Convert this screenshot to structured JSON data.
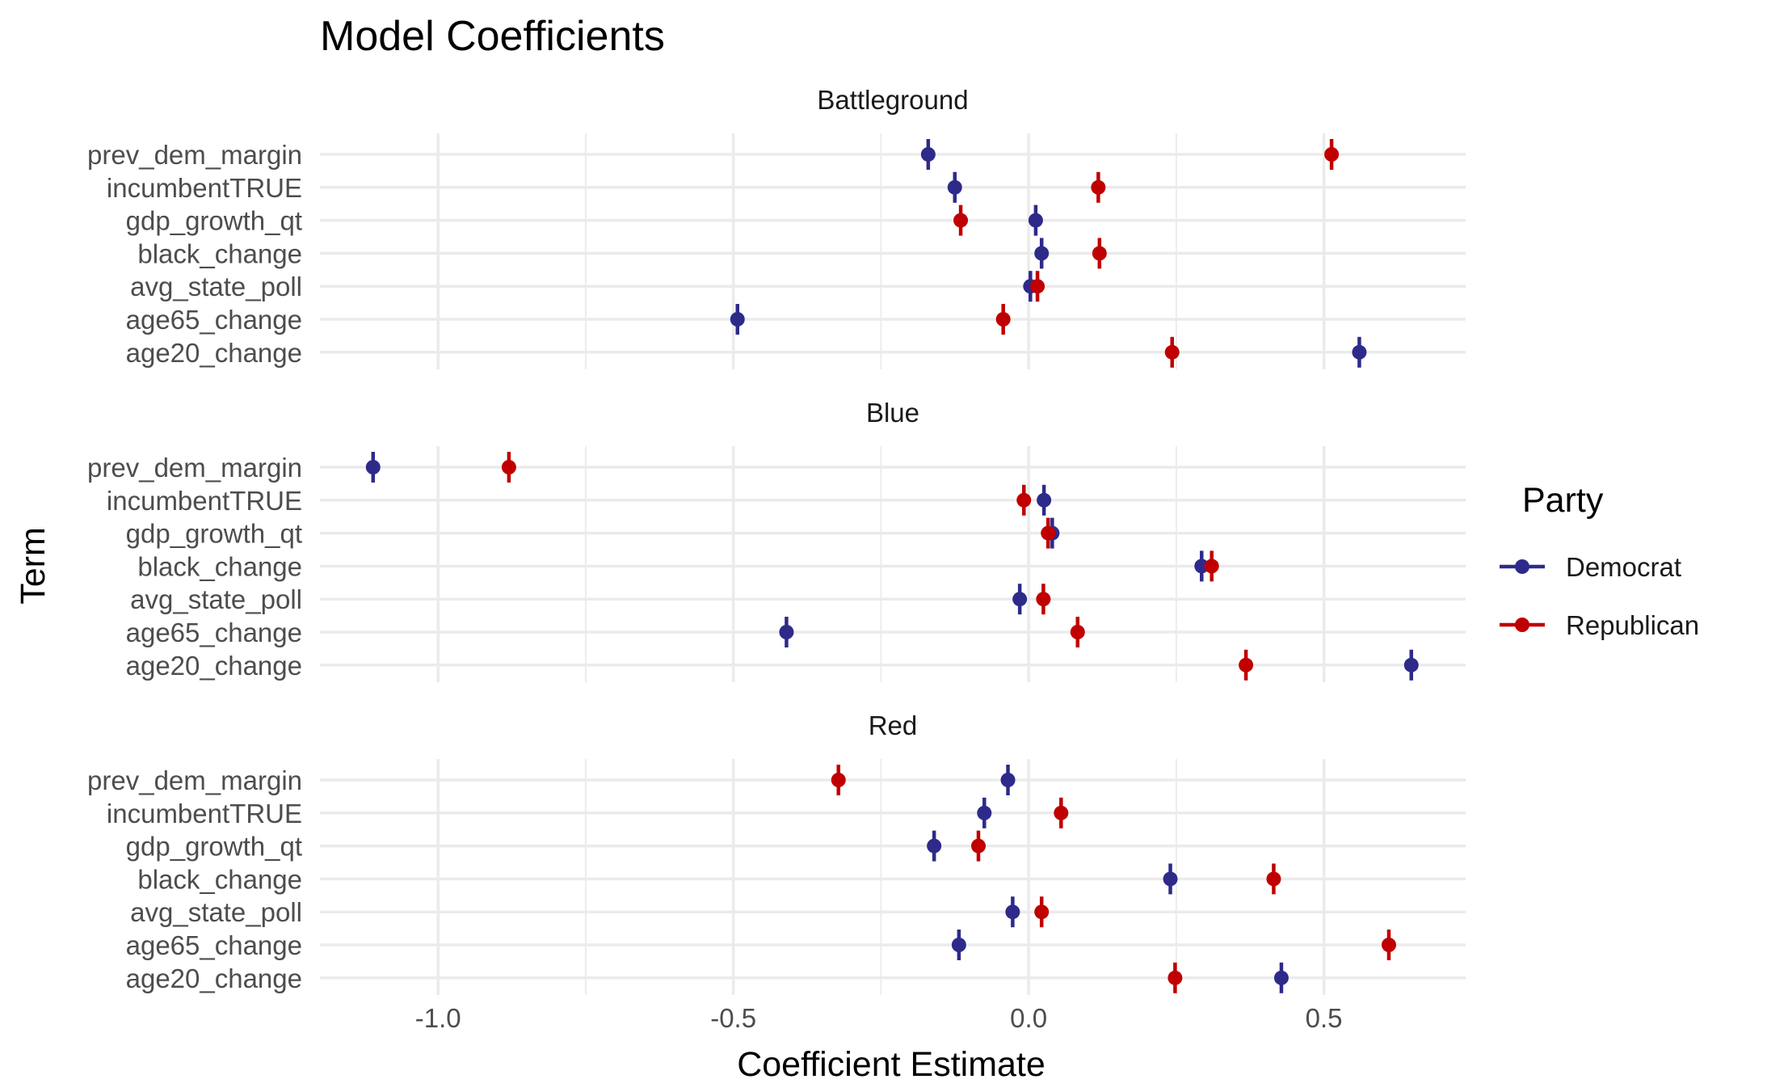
{
  "chart_data": {
    "type": "scatter",
    "title": "Model Coefficients",
    "xlabel": "Coefficient Estimate",
    "ylabel": "Term",
    "xlim": [
      -1.2,
      0.74
    ],
    "x_ticks": [
      {
        "value": -1.0,
        "label": "-1.0"
      },
      {
        "value": -0.5,
        "label": "-0.5"
      },
      {
        "value": 0.0,
        "label": "0.0"
      },
      {
        "value": 0.5,
        "label": "0.5"
      }
    ],
    "terms": [
      "prev_dem_margin",
      "incumbentTRUE",
      "gdp_growth_qt",
      "black_change",
      "avg_state_poll",
      "age65_change",
      "age20_change"
    ],
    "legend": {
      "title": "Party",
      "position": "right"
    },
    "grid": true,
    "series_colors": {
      "Democrat": "#2e2a8a",
      "Republican": "#c00000"
    },
    "series": [
      "Democrat",
      "Republican"
    ],
    "panels": [
      {
        "name": "Battleground",
        "Democrat": {
          "prev_dem_margin": -0.17,
          "incumbentTRUE": -0.125,
          "gdp_growth_qt": 0.012,
          "black_change": 0.022,
          "avg_state_poll": 0.003,
          "age65_change": -0.493,
          "age20_change": 0.56
        },
        "Republican": {
          "prev_dem_margin": 0.513,
          "incumbentTRUE": 0.118,
          "gdp_growth_qt": -0.115,
          "black_change": 0.12,
          "avg_state_poll": 0.015,
          "age65_change": -0.043,
          "age20_change": 0.243
        }
      },
      {
        "name": "Blue",
        "Democrat": {
          "prev_dem_margin": -1.11,
          "incumbentTRUE": 0.026,
          "gdp_growth_qt": 0.04,
          "black_change": 0.293,
          "avg_state_poll": -0.015,
          "age65_change": -0.41,
          "age20_change": 0.648
        },
        "Republican": {
          "prev_dem_margin": -0.88,
          "incumbentTRUE": -0.008,
          "gdp_growth_qt": 0.033,
          "black_change": 0.31,
          "avg_state_poll": 0.025,
          "age65_change": 0.083,
          "age20_change": 0.368
        }
      },
      {
        "name": "Red",
        "Democrat": {
          "prev_dem_margin": -0.035,
          "incumbentTRUE": -0.075,
          "gdp_growth_qt": -0.16,
          "black_change": 0.24,
          "avg_state_poll": -0.027,
          "age65_change": -0.118,
          "age20_change": 0.428
        },
        "Republican": {
          "prev_dem_margin": -0.322,
          "incumbentTRUE": 0.055,
          "gdp_growth_qt": -0.085,
          "black_change": 0.415,
          "avg_state_poll": 0.022,
          "age65_change": 0.61,
          "age20_change": 0.248
        }
      }
    ]
  }
}
